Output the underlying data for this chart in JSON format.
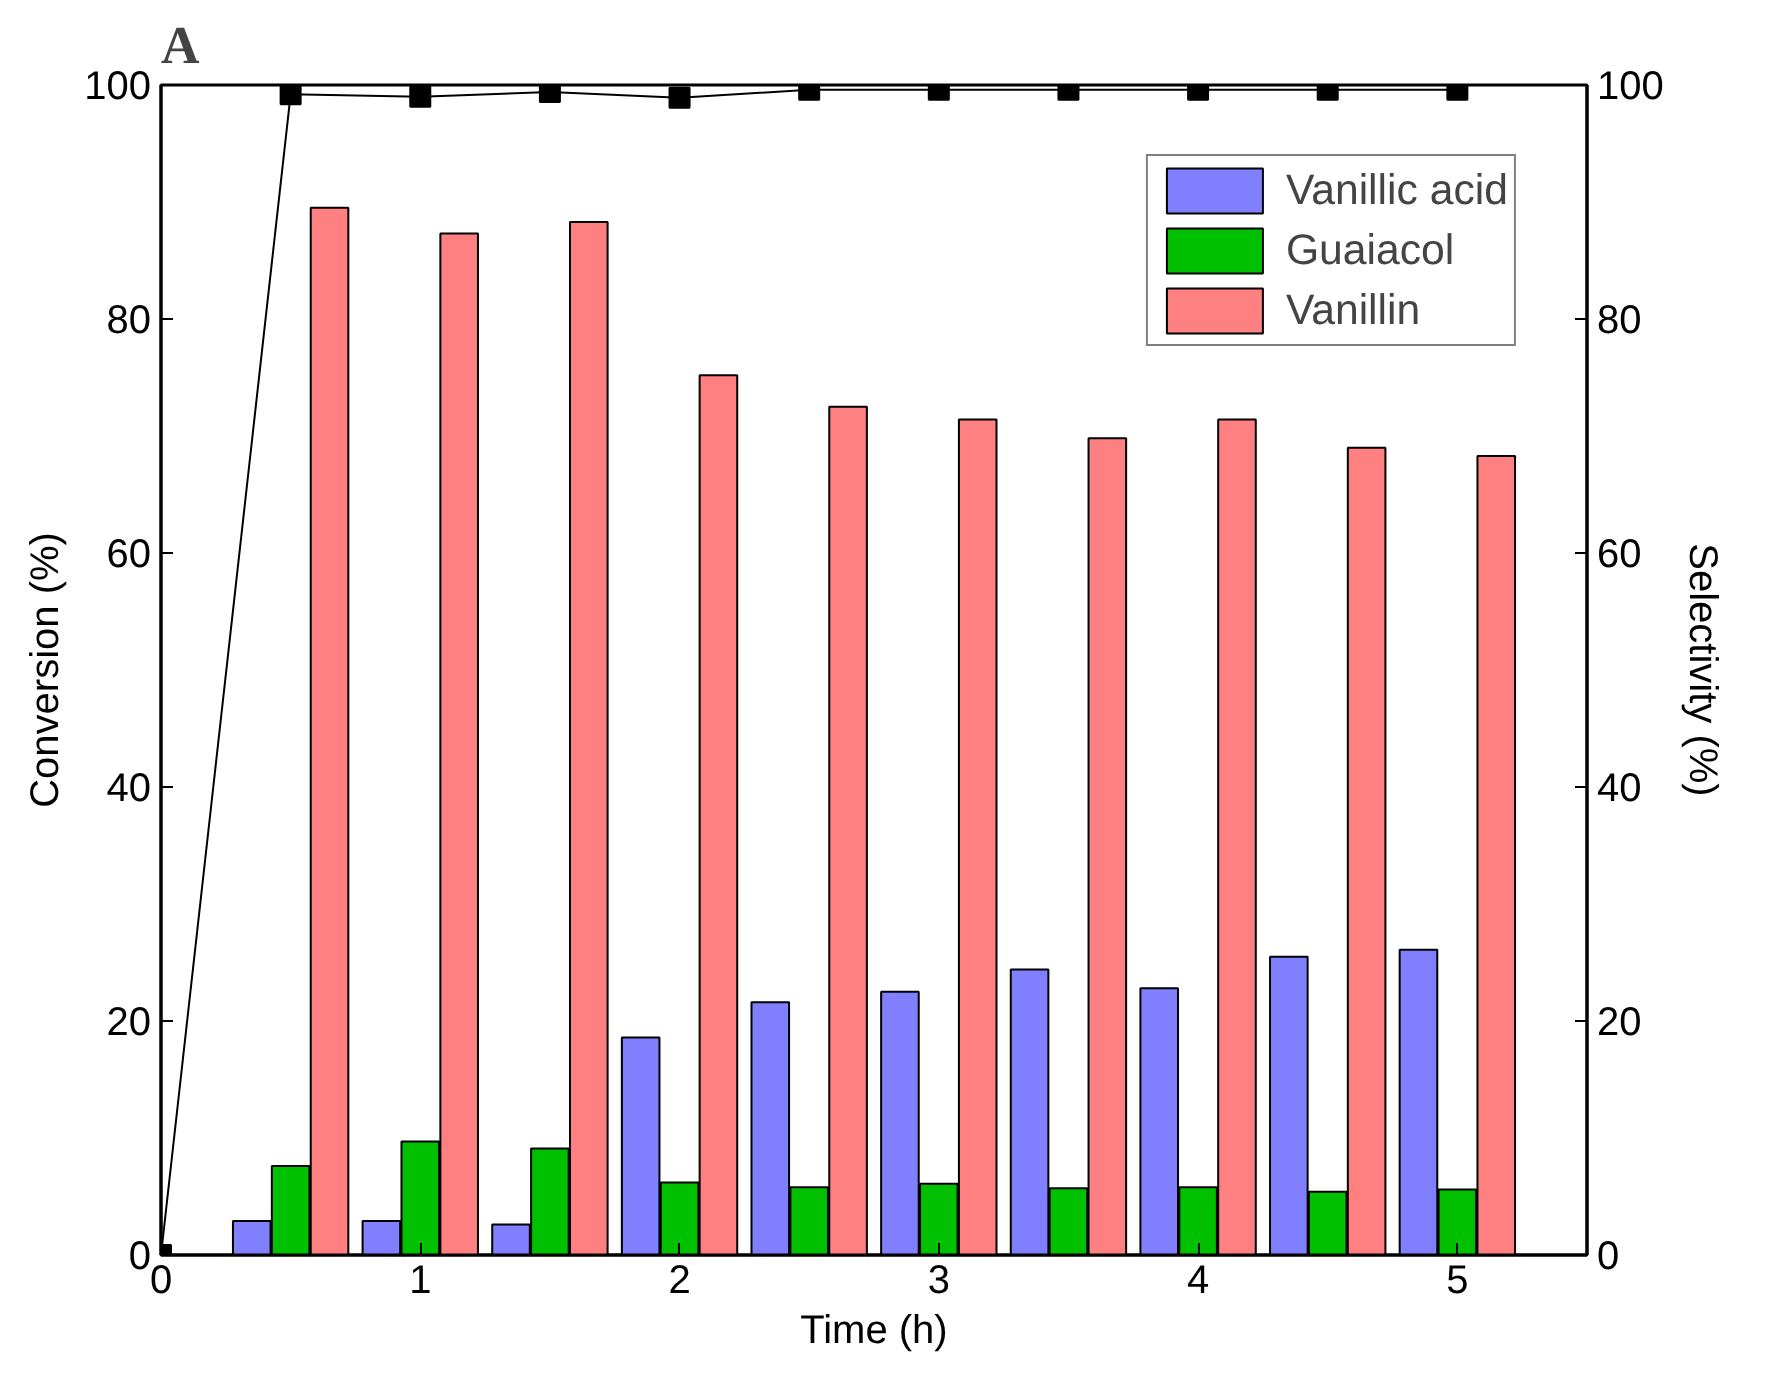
{
  "chart_data": {
    "type": "bar",
    "title": "A",
    "xlabel": "Time (h)",
    "ylabel": "Conversion (%)",
    "y2label": "Selectivity (%)",
    "x": [
      0.5,
      1,
      1.5,
      2,
      2.5,
      3,
      3.5,
      4,
      4.5,
      5
    ],
    "series": [
      {
        "name": "Vanillic acid",
        "color": "#8080ff",
        "values": [
          2.9,
          2.9,
          2.6,
          18.6,
          21.6,
          22.5,
          24.4,
          22.8,
          25.5,
          26.1
        ]
      },
      {
        "name": "Guaiacol",
        "color": "#00c000",
        "values": [
          7.6,
          9.7,
          9.1,
          6.2,
          5.8,
          6.1,
          5.7,
          5.8,
          5.4,
          5.6
        ]
      },
      {
        "name": "Vanillin",
        "color": "#ff8080",
        "values": [
          89.5,
          87.3,
          88.3,
          75.2,
          72.5,
          71.4,
          69.8,
          71.4,
          69.0,
          68.3
        ]
      },
      {
        "type": "line",
        "color": "#000000",
        "marker": "square",
        "x": [
          0,
          0.5,
          1,
          1.5,
          2,
          2.5,
          3,
          3.5,
          4,
          4.5,
          5
        ],
        "values": [
          0,
          99.2,
          99.0,
          99.4,
          98.9,
          99.6,
          99.6,
          99.6,
          99.6,
          99.6,
          99.6
        ]
      }
    ],
    "xlim": [
      0,
      5.5
    ],
    "xticks": [
      0,
      1,
      2,
      3,
      4,
      5
    ],
    "ylim": [
      0,
      100
    ],
    "yticks": [
      0,
      20,
      40,
      60,
      80,
      100
    ],
    "y2lim": [
      0,
      100
    ],
    "y2ticks": [
      0,
      20,
      40,
      60,
      80,
      100
    ],
    "legend": "top right",
    "grid": false
  }
}
